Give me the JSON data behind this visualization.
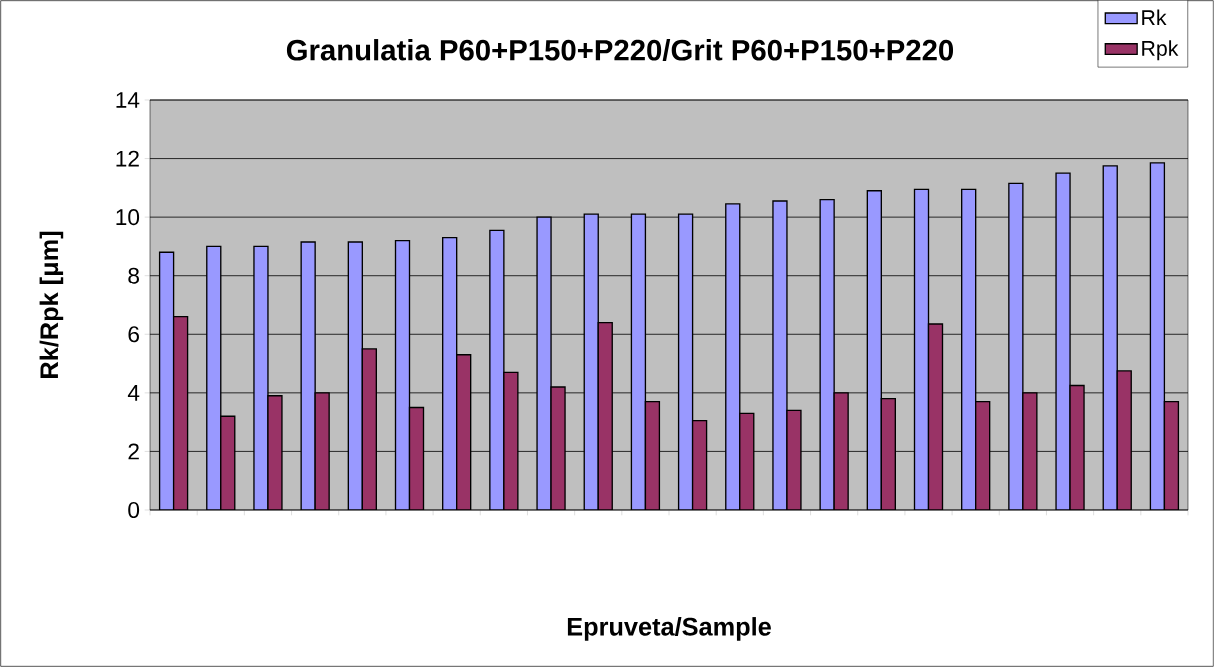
{
  "chart_data": {
    "type": "bar",
    "title": "Granulatia P60+P150+P220/Grit P60+P150+P220",
    "xlabel": "Epruveta/Sample",
    "ylabel": "Rk/Rpk [μm]",
    "categories": [
      null,
      null,
      null,
      null,
      null,
      null,
      null,
      null,
      null,
      null,
      null,
      null,
      null,
      null,
      null,
      null,
      null,
      null,
      null,
      null,
      null,
      null
    ],
    "series": [
      {
        "name": "Rk",
        "color": "#9999ff",
        "values": [
          8.8,
          9.0,
          9.0,
          9.15,
          9.15,
          9.2,
          9.3,
          9.55,
          10.0,
          10.1,
          10.1,
          10.1,
          10.45,
          10.55,
          10.6,
          10.9,
          10.95,
          10.95,
          11.15,
          11.5,
          11.75,
          11.85
        ]
      },
      {
        "name": "Rpk",
        "color": "#993366",
        "values": [
          6.6,
          3.2,
          3.9,
          4.0,
          5.5,
          3.5,
          5.3,
          4.7,
          4.2,
          6.4,
          3.7,
          3.05,
          3.3,
          3.4,
          4.0,
          3.8,
          6.35,
          3.7,
          4.0,
          4.25,
          4.75,
          3.7
        ]
      }
    ],
    "ylim": [
      0,
      14
    ],
    "yticks": [
      0,
      2,
      4,
      6,
      8,
      10,
      12,
      14
    ],
    "grid": "y",
    "legend": "top right"
  }
}
